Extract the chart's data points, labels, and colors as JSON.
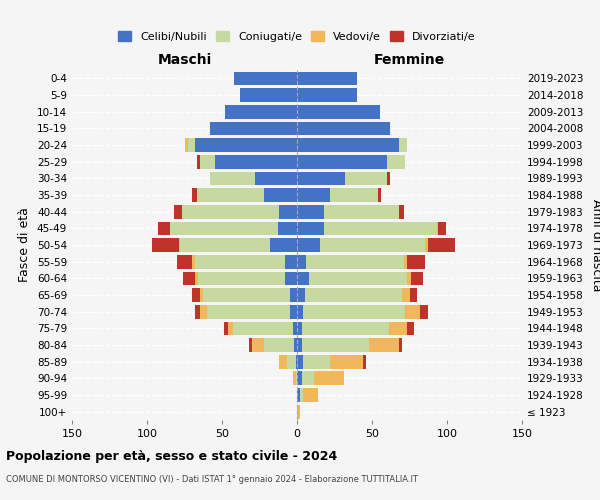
{
  "age_groups": [
    "100+",
    "95-99",
    "90-94",
    "85-89",
    "80-84",
    "75-79",
    "70-74",
    "65-69",
    "60-64",
    "55-59",
    "50-54",
    "45-49",
    "40-44",
    "35-39",
    "30-34",
    "25-29",
    "20-24",
    "15-19",
    "10-14",
    "5-9",
    "0-4"
  ],
  "birth_years": [
    "≤ 1923",
    "1924-1928",
    "1929-1933",
    "1934-1938",
    "1939-1943",
    "1944-1948",
    "1949-1953",
    "1954-1958",
    "1959-1963",
    "1964-1968",
    "1969-1973",
    "1974-1978",
    "1979-1983",
    "1984-1988",
    "1989-1993",
    "1994-1998",
    "1999-2003",
    "2004-2008",
    "2009-2013",
    "2014-2018",
    "2019-2023"
  ],
  "colors": {
    "celibi": "#4472C4",
    "coniugati": "#c5d9a0",
    "vedovi": "#f0b85a",
    "divorziati": "#c0332a"
  },
  "male": {
    "celibi": [
      0,
      0,
      0,
      1,
      2,
      3,
      5,
      5,
      8,
      8,
      18,
      13,
      12,
      22,
      28,
      55,
      68,
      58,
      48,
      38,
      42
    ],
    "coniugati": [
      0,
      0,
      1,
      6,
      20,
      40,
      55,
      58,
      58,
      60,
      60,
      72,
      65,
      45,
      30,
      10,
      5,
      0,
      0,
      0,
      0
    ],
    "vedovi": [
      0,
      0,
      2,
      5,
      8,
      3,
      5,
      2,
      2,
      2,
      1,
      0,
      0,
      0,
      0,
      0,
      2,
      0,
      0,
      0,
      0
    ],
    "divorziati": [
      0,
      0,
      0,
      0,
      2,
      3,
      3,
      5,
      8,
      10,
      18,
      8,
      5,
      3,
      0,
      2,
      0,
      0,
      0,
      0,
      0
    ]
  },
  "female": {
    "celibi": [
      0,
      2,
      3,
      4,
      3,
      3,
      4,
      5,
      8,
      6,
      15,
      18,
      18,
      22,
      32,
      60,
      68,
      62,
      55,
      40,
      40
    ],
    "coniugati": [
      0,
      2,
      8,
      18,
      45,
      58,
      68,
      65,
      65,
      65,
      70,
      75,
      50,
      32,
      28,
      12,
      5,
      0,
      0,
      0,
      0
    ],
    "vedovi": [
      2,
      10,
      20,
      22,
      20,
      12,
      10,
      5,
      3,
      2,
      2,
      1,
      0,
      0,
      0,
      0,
      0,
      0,
      0,
      0,
      0
    ],
    "divorziati": [
      0,
      0,
      0,
      2,
      2,
      5,
      5,
      5,
      8,
      12,
      18,
      5,
      3,
      2,
      2,
      0,
      0,
      0,
      0,
      0,
      0
    ]
  },
  "xlim": 150,
  "title": "Popolazione per età, sesso e stato civile - 2024",
  "subtitle": "COMUNE DI MONTORSO VICENTINO (VI) - Dati ISTAT 1° gennaio 2024 - Elaborazione TUTTITALIA.IT",
  "ylabel_left": "Fasce di età",
  "ylabel_right": "Anni di nascita",
  "xlabel_male": "Maschi",
  "xlabel_female": "Femmine",
  "legend_labels": [
    "Celibi/Nubili",
    "Coniugati/e",
    "Vedovi/e",
    "Divorziati/e"
  ],
  "bg_color": "#f5f5f5"
}
